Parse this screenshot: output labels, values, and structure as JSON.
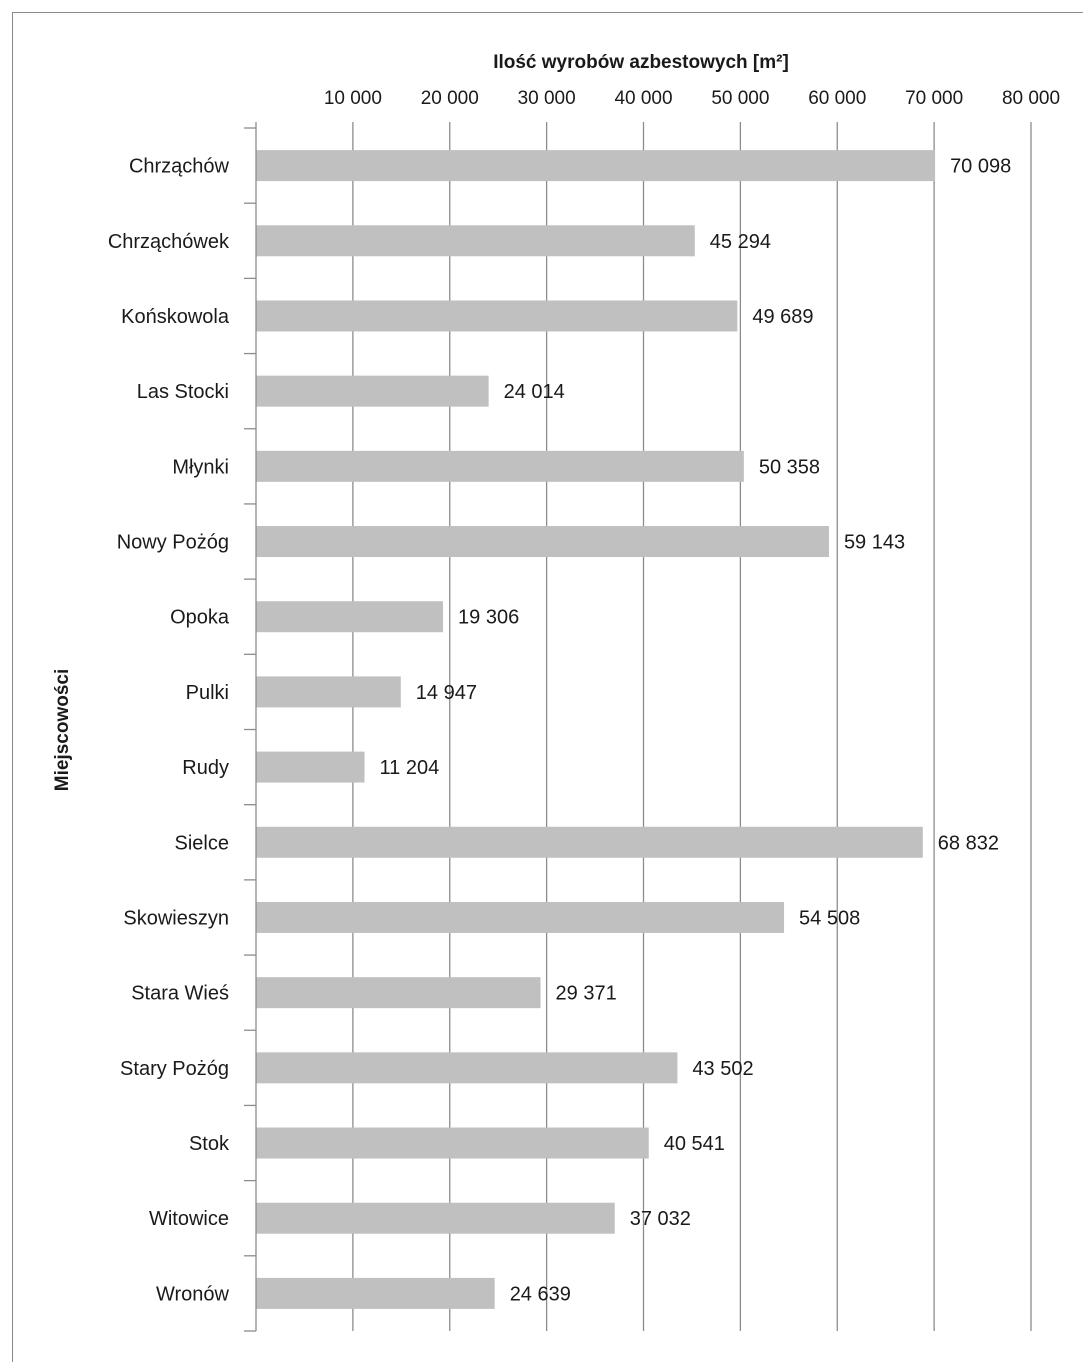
{
  "chart_data": {
    "type": "bar",
    "orientation": "horizontal",
    "title": "",
    "xlabel": "Ilość wyrobów azbestowych [m²]",
    "ylabel": "Miejscowości",
    "xlim": [
      0,
      80000
    ],
    "x_ticks": [
      10000,
      20000,
      30000,
      40000,
      50000,
      60000,
      70000,
      80000
    ],
    "x_tick_labels": [
      "10 000",
      "20 000",
      "30 000",
      "40 000",
      "50 000",
      "60 000",
      "70 000",
      "80 000"
    ],
    "x_axis_position": "top",
    "grid": true,
    "legend": false,
    "bar_color": "#c0c0c0",
    "categories": [
      "Chrząchów",
      "Chrząchówek",
      "Końskowola",
      "Las Stocki",
      "Młynki",
      "Nowy Pożóg",
      "Opoka",
      "Pulki",
      "Rudy",
      "Sielce",
      "Skowieszyn",
      "Stara Wieś",
      "Stary Pożóg",
      "Stok",
      "Witowice",
      "Wronów"
    ],
    "values": [
      70098,
      45294,
      49689,
      24014,
      50358,
      59143,
      19306,
      14947,
      11204,
      68832,
      54508,
      29371,
      43502,
      40541,
      37032,
      24639
    ],
    "data_labels": [
      "70 098",
      "45 294",
      "49 689",
      "24 014",
      "50 358",
      "59 143",
      "19 306",
      "14 947",
      "11 204",
      "68 832",
      "54 508",
      "29 371",
      "43 502",
      "40 541",
      "37 032",
      "24 639"
    ]
  }
}
